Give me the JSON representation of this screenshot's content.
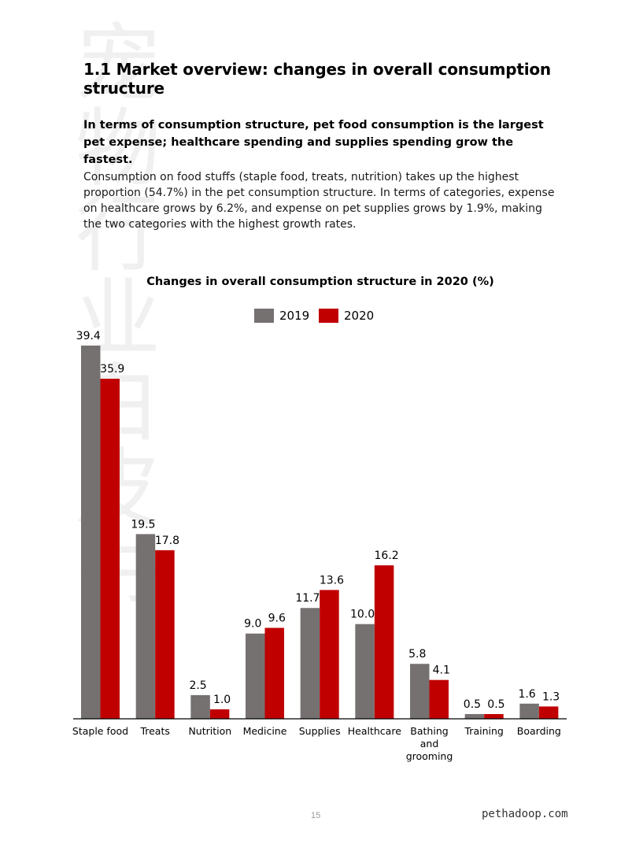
{
  "page": {
    "watermark": "宠物行业白皮书",
    "title": "1.1 Market overview: changes in overall consumption structure",
    "subheading": "In terms of consumption structure, pet food consumption is the largest pet expense; healthcare spending and supplies spending grow the fastest.",
    "body": "Consumption on food stuffs (staple food, treats, nutrition) takes up the highest proportion (54.7%) in the pet consumption structure. In terms of categories, expense on healthcare grows by 6.2%, and expense on pet supplies grows by 1.9%, making the two categories with the highest growth rates.",
    "page_number": "15",
    "site": "pethadoop.com"
  },
  "chart_data": {
    "type": "bar",
    "title": "Changes in overall consumption structure in 2020 (%)",
    "categories": [
      "Staple food",
      "Treats",
      "Nutrition",
      "Medicine",
      "Supplies",
      "Healthcare",
      "Bathing and grooming",
      "Training",
      "Boarding"
    ],
    "series": [
      {
        "name": "2019",
        "color": "#767171",
        "values": [
          39.4,
          19.5,
          2.5,
          9.0,
          11.7,
          10.0,
          5.8,
          0.5,
          1.6
        ],
        "labels": [
          "39.4",
          "19.5",
          "2.5",
          "9.0",
          "11.7",
          "10.0",
          "5.8",
          "0.5",
          "1.6"
        ]
      },
      {
        "name": "2020",
        "color": "#c00000",
        "values": [
          35.9,
          17.8,
          1.0,
          9.6,
          13.6,
          16.2,
          4.1,
          0.5,
          1.3
        ],
        "labels": [
          "35.9",
          "17.8",
          "1.0",
          "9.6",
          "13.6",
          "16.2",
          "4.1",
          "0.5",
          "1.3"
        ]
      }
    ],
    "ylim": [
      0,
      40
    ],
    "grid": false,
    "legend": "top-center",
    "data_labels": true
  }
}
